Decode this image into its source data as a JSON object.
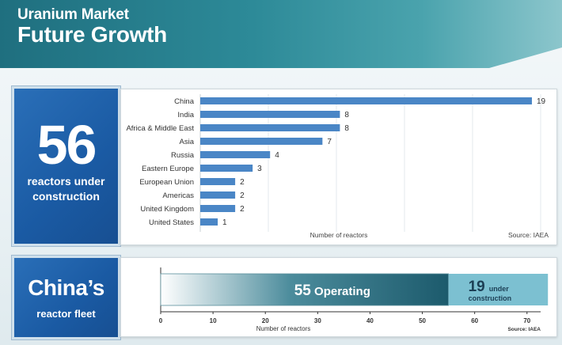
{
  "header": {
    "line1": "Uranium Market",
    "line2": "Future Growth"
  },
  "stat_box": {
    "number": "56",
    "label_line1": "reactors under",
    "label_line2": "construction"
  },
  "fleet_box": {
    "title": "China’s",
    "label": "reactor fleet"
  },
  "colors": {
    "bar": "#4a86c6",
    "dark": "#1c5a6c",
    "light": "#7cc0d1",
    "header": "#1f6f7f"
  },
  "chart_data": [
    {
      "type": "bar",
      "orientation": "horizontal",
      "categories": [
        "China",
        "India",
        "Africa & Middle East",
        "Asia",
        "Russia",
        "Eastern Europe",
        "European Union",
        "Americas",
        "United Kingdom",
        "United States"
      ],
      "values": [
        19,
        8,
        8,
        7,
        4,
        3,
        2,
        2,
        2,
        1
      ],
      "xlabel": "Number of reactors",
      "source": "Source: IAEA",
      "xlim": [
        0,
        19.5
      ],
      "grid": true
    },
    {
      "type": "bar",
      "orientation": "horizontal",
      "stacked": true,
      "segments": [
        {
          "value": 55,
          "label_number": "55",
          "label_text": "Operating"
        },
        {
          "value": 19,
          "label_number": "19",
          "label_text_line1": "under",
          "label_text_line2": "construction"
        }
      ],
      "xticks": [
        0,
        10,
        20,
        30,
        40,
        50,
        60,
        70
      ],
      "xlim": [
        0,
        72
      ],
      "xlabel": "Number of reactors",
      "source": "Source: IAEA"
    }
  ]
}
